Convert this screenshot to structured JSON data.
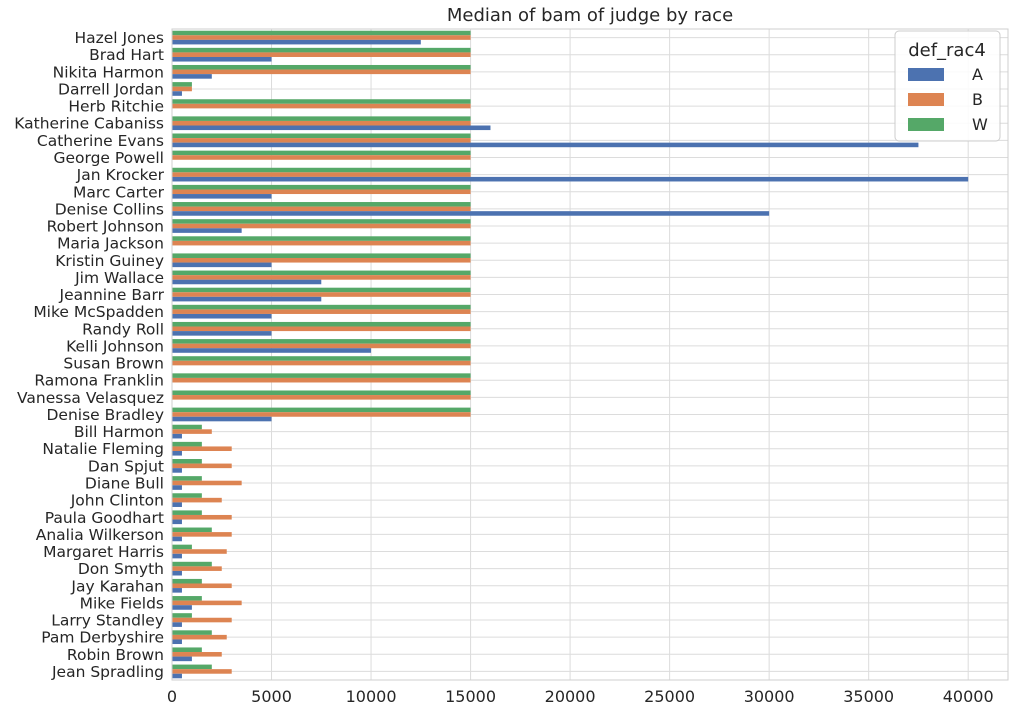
{
  "chart_data": {
    "type": "bar",
    "orientation": "horizontal",
    "title": "Median of bam of judge by race",
    "xlabel": "",
    "ylabel": "",
    "xlim": [
      0,
      42000
    ],
    "xticks": [
      0,
      5000,
      10000,
      15000,
      20000,
      25000,
      30000,
      35000,
      40000
    ],
    "grid": true,
    "legend": {
      "title": "def_rac4",
      "position": "top-right"
    },
    "categories": [
      "Hazel Jones",
      "Brad Hart",
      "Nikita Harmon",
      "Darrell Jordan",
      "Herb Ritchie",
      "Katherine Cabaniss",
      "Catherine Evans",
      "George Powell",
      "Jan Krocker",
      "Marc Carter",
      "Denise Collins",
      "Robert Johnson",
      "Maria Jackson",
      "Kristin Guiney",
      "Jim Wallace",
      "Jeannine Barr",
      "Mike McSpadden",
      "Randy Roll",
      "Kelli Johnson",
      "Susan Brown",
      "Ramona Franklin",
      "Vanessa Velasquez",
      "Denise Bradley",
      "Bill Harmon",
      "Natalie Fleming",
      "Dan Spjut",
      "Diane Bull",
      "John Clinton",
      "Paula Goodhart",
      "Analia Wilkerson",
      "Margaret Harris",
      "Don Smyth",
      "Jay Karahan",
      "Mike Fields",
      "Larry Standley",
      "Pam Derbyshire",
      "Robin Brown",
      "Jean Spradling"
    ],
    "series": [
      {
        "name": "A",
        "color": "#4c72b0",
        "values": [
          12500,
          5000,
          2000,
          500,
          0,
          16000,
          37500,
          0,
          40000,
          5000,
          30000,
          3500,
          0,
          5000,
          7500,
          7500,
          5000,
          5000,
          10000,
          0,
          0,
          0,
          5000,
          500,
          500,
          500,
          500,
          500,
          500,
          500,
          500,
          500,
          500,
          1000,
          500,
          500,
          1000,
          500
        ]
      },
      {
        "name": "B",
        "color": "#dd8452",
        "values": [
          15000,
          15000,
          15000,
          1000,
          15000,
          15000,
          15000,
          15000,
          15000,
          15000,
          15000,
          15000,
          15000,
          15000,
          15000,
          15000,
          15000,
          15000,
          15000,
          15000,
          15000,
          15000,
          15000,
          2000,
          3000,
          3000,
          3500,
          2500,
          3000,
          3000,
          2750,
          2500,
          3000,
          3500,
          3000,
          2750,
          2500,
          3000
        ]
      },
      {
        "name": "W",
        "color": "#55a868",
        "values": [
          15000,
          15000,
          15000,
          1000,
          15000,
          15000,
          15000,
          15000,
          15000,
          15000,
          15000,
          15000,
          15000,
          15000,
          15000,
          15000,
          15000,
          15000,
          15000,
          15000,
          15000,
          15000,
          15000,
          1500,
          1500,
          1500,
          1500,
          1500,
          1500,
          2000,
          1000,
          2000,
          1500,
          1500,
          1000,
          2000,
          1500,
          2000
        ]
      }
    ]
  }
}
